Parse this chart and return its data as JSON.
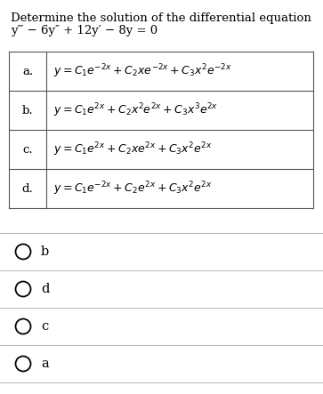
{
  "title_line1": "Determine the solution of the differential equation",
  "title_line2": "y‴ − 6y″ + 12y′ − 8y = 0",
  "options": [
    {
      "label": "a.",
      "formula": "$y = C_1e^{-2x} + C_2xe^{-2x} + C_3x^2e^{-2x}$"
    },
    {
      "label": "b.",
      "formula": "$y = C_1e^{2x} + C_2x^2e^{2x} + C_3x^3e^{2x}$"
    },
    {
      "label": "c.",
      "formula": "$y = C_1e^{2x} + C_2xe^{2x} + C_3x^2e^{2x}$"
    },
    {
      "label": "d.",
      "formula": "$y = C_1e^{-2x} + C_2e^{2x} + C_3x^2e^{2x}$"
    }
  ],
  "radio_options": [
    "b",
    "d",
    "c",
    "a"
  ],
  "background_color": "#ffffff",
  "text_color": "#000000",
  "table_line_color": "#555555",
  "radio_sep_color": "#aaaaaa",
  "title_fontsize": 9.5,
  "label_fontsize": 9.5,
  "formula_fontsize": 9.0,
  "radio_fontsize": 10.5,
  "fig_width": 3.63,
  "fig_height": 4.43,
  "dpi": 100
}
